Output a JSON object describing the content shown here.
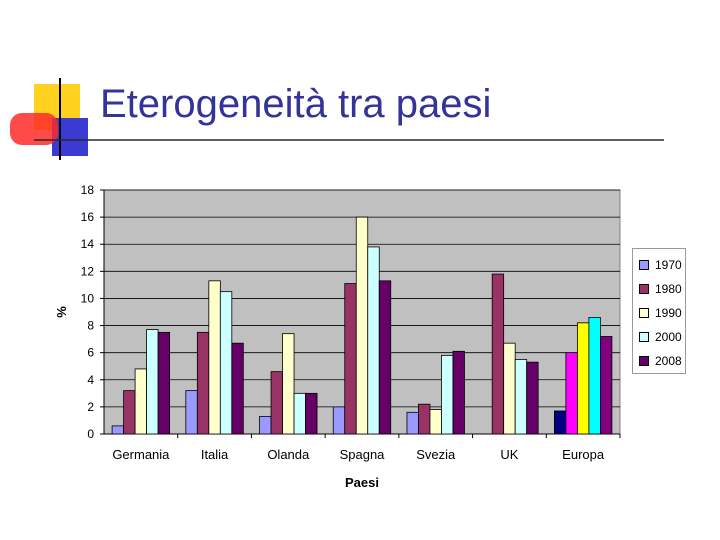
{
  "slide": {
    "title": "Eterogeneità tra paesi",
    "title_color": "#333399",
    "accent_colors": {
      "yellow": "#ffd21f",
      "red": "#ff2a2a",
      "blue": "#3b3bd4"
    }
  },
  "chart_data": {
    "type": "bar",
    "title": "",
    "xlabel": "Paesi",
    "ylabel": "%",
    "ylim": [
      0,
      18
    ],
    "yticks": [
      "0",
      "2",
      "4",
      "6",
      "8",
      "10",
      "12",
      "14",
      "16",
      "18"
    ],
    "grid": "horizontal",
    "legend_position": "right",
    "plot_background": "#c0c0c0",
    "categories": [
      "Germania",
      "Italia",
      "Olanda",
      "Spagna",
      "Svezia",
      "UK",
      "Europa"
    ],
    "series": [
      {
        "name": "1970",
        "color": "#9999ff",
        "values": [
          0.6,
          3.2,
          1.3,
          2.0,
          1.6,
          null,
          1.7
        ]
      },
      {
        "name": "1980",
        "color": "#993366",
        "values": [
          3.2,
          7.5,
          4.6,
          11.1,
          2.2,
          11.8,
          6.0
        ]
      },
      {
        "name": "1990",
        "color": "#ffffcc",
        "values": [
          4.8,
          11.3,
          7.4,
          16.0,
          1.8,
          6.7,
          8.2
        ]
      },
      {
        "name": "2000",
        "color": "#ccffff",
        "values": [
          7.7,
          10.5,
          3.0,
          13.8,
          5.8,
          5.5,
          8.6
        ]
      },
      {
        "name": "2008",
        "color": "#660066",
        "values": [
          7.5,
          6.7,
          3.0,
          11.3,
          6.1,
          5.3,
          7.2
        ]
      }
    ],
    "europa_colors": [
      "#000080",
      "#ff00ff",
      "#ffff00",
      "#00ffff",
      "#800080"
    ]
  }
}
